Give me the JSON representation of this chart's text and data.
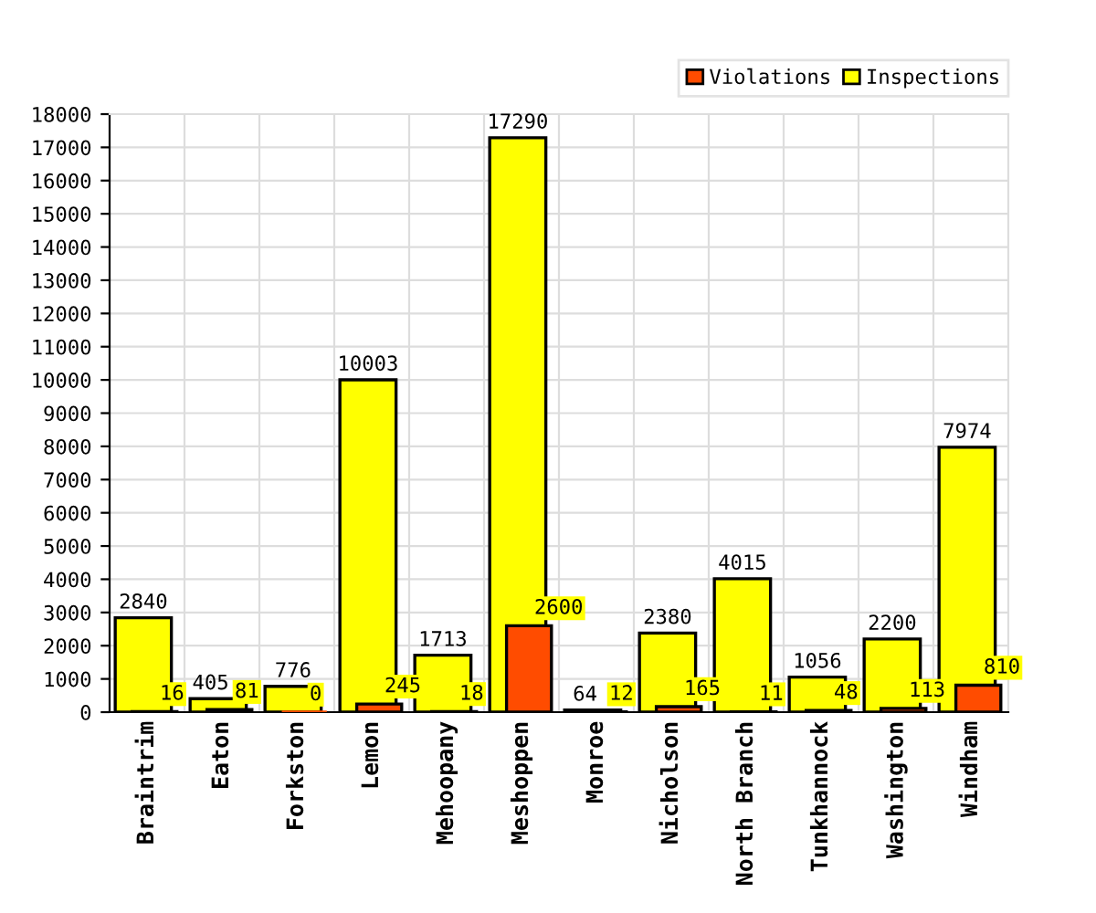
{
  "chart_data": {
    "type": "bar",
    "categories": [
      "Braintrim",
      "Eaton",
      "Forkston",
      "Lemon",
      "Mehoopany",
      "Meshoppen",
      "Monroe",
      "Nicholson",
      "North Branch",
      "Tunkhannock",
      "Washington",
      "Windham"
    ],
    "series": [
      {
        "name": "Violations",
        "color": "#ff4c00",
        "values": [
          16,
          81,
          0,
          245,
          18,
          2600,
          12,
          165,
          11,
          48,
          113,
          810
        ]
      },
      {
        "name": "Inspections",
        "color": "#ffff00",
        "values": [
          2840,
          405,
          776,
          10003,
          1713,
          17290,
          64,
          2380,
          4015,
          1056,
          2200,
          7974
        ]
      }
    ],
    "ylim": [
      0,
      18000
    ],
    "yticks": [
      0,
      1000,
      2000,
      3000,
      4000,
      5000,
      6000,
      7000,
      8000,
      9000,
      10000,
      11000,
      12000,
      13000,
      14000,
      15000,
      16000,
      17000,
      18000
    ],
    "grid": true,
    "legend": "top right",
    "data_labels": true
  }
}
